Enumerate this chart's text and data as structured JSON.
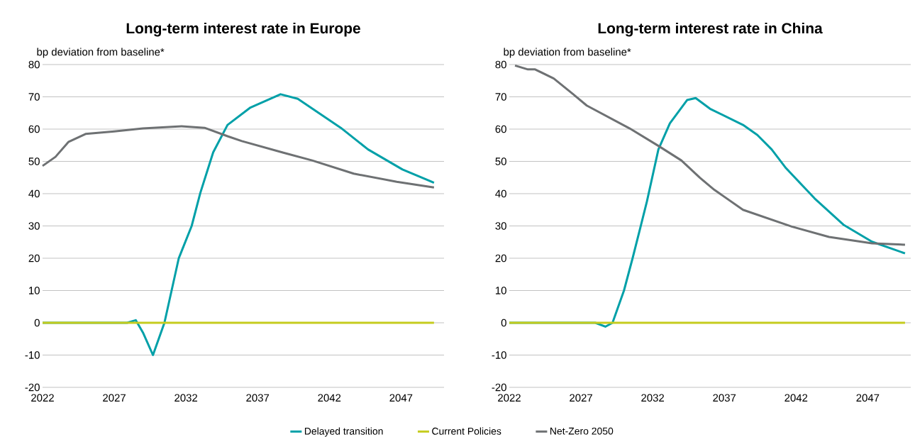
{
  "chart_data": [
    {
      "type": "line",
      "title": "Long-term interest rate in Europe",
      "ylabel": "bp deviation from baseline*",
      "xlim": [
        2022,
        2050
      ],
      "ylim": [
        -20,
        80
      ],
      "xticks": [
        2022,
        2027,
        2032,
        2037,
        2042,
        2047
      ],
      "yticks": [
        -20,
        -10,
        0,
        10,
        20,
        30,
        40,
        50,
        60,
        70,
        80
      ],
      "grid": "y",
      "legend": "bottom",
      "marker": "none",
      "series": [
        {
          "name": "Delayed transition",
          "color": "#00a0a8",
          "x": [
            2022,
            2025,
            2027.9,
            2028.5,
            2029,
            2029.7,
            2030.5,
            2031.5,
            2032.4,
            2033,
            2033.9,
            2034.9,
            2036.5,
            2038.6,
            2039.8,
            2042.8,
            2044.7,
            2047.1,
            2049.3
          ],
          "values": [
            0,
            0,
            0,
            0.8,
            -3,
            -10,
            0,
            20,
            30,
            40.2,
            52.8,
            61.3,
            66.7,
            70.8,
            69.4,
            60.4,
            53.7,
            47.5,
            43.4
          ]
        },
        {
          "name": "Current Policies",
          "color": "#c5cc1e",
          "x": [
            2022,
            2049.3
          ],
          "values": [
            0,
            0
          ]
        },
        {
          "name": "Net-Zero 2050",
          "color": "#6e7173",
          "x": [
            2022,
            2022.9,
            2023.8,
            2025,
            2027,
            2029,
            2031.7,
            2033.3,
            2034.9,
            2035.9,
            2038.8,
            2040.8,
            2043.7,
            2046.7,
            2049.3
          ],
          "values": [
            48.6,
            51.4,
            56,
            58.5,
            59.3,
            60.2,
            60.9,
            60.4,
            57.8,
            56.3,
            52.7,
            50.3,
            46.2,
            43.7,
            41.9
          ]
        }
      ]
    },
    {
      "type": "line",
      "title": "Long-term interest rate in China",
      "ylabel": "bp deviation from baseline*",
      "xlim": [
        2022,
        2050
      ],
      "ylim": [
        -20,
        80
      ],
      "xticks": [
        2022,
        2027,
        2032,
        2037,
        2042,
        2047
      ],
      "yticks": [
        -20,
        -10,
        0,
        10,
        20,
        30,
        40,
        50,
        60,
        70,
        80
      ],
      "grid": "y",
      "marker": "none",
      "series": [
        {
          "color": "#00a0a8",
          "x": [
            2022,
            2025,
            2028.0,
            2028.7,
            2029.2,
            2030.0,
            2030.6,
            2031.2,
            2031.6,
            2032.4,
            2033.2,
            2034.4,
            2035,
            2036,
            2038.3,
            2039.3,
            2040.3,
            2041.3,
            2043.3,
            2045.3,
            2047.3,
            2049.6
          ],
          "values": [
            0,
            0,
            0,
            -1.2,
            0,
            10,
            20,
            30.5,
            37.6,
            53.7,
            61.8,
            69,
            69.6,
            66.3,
            61.3,
            58.2,
            53.7,
            47.9,
            38.5,
            30.4,
            25.1,
            21.5
          ]
        },
        {
          "color": "#c5cc1e",
          "x": [
            2022,
            2049.6
          ],
          "values": [
            0,
            0
          ]
        },
        {
          "color": "#6e7173",
          "x": [
            2022.4,
            2023.3,
            2023.8,
            2025.1,
            2026.4,
            2027.4,
            2030.4,
            2032.4,
            2034,
            2035.3,
            2036.3,
            2038.3,
            2041.7,
            2044.3,
            2047.3,
            2049.6
          ],
          "values": [
            79.7,
            78.5,
            78.5,
            75.7,
            71,
            67.3,
            60.2,
            54.8,
            50.3,
            44.9,
            41.2,
            35,
            29.8,
            26.6,
            24.6,
            24.2
          ]
        }
      ]
    }
  ]
}
